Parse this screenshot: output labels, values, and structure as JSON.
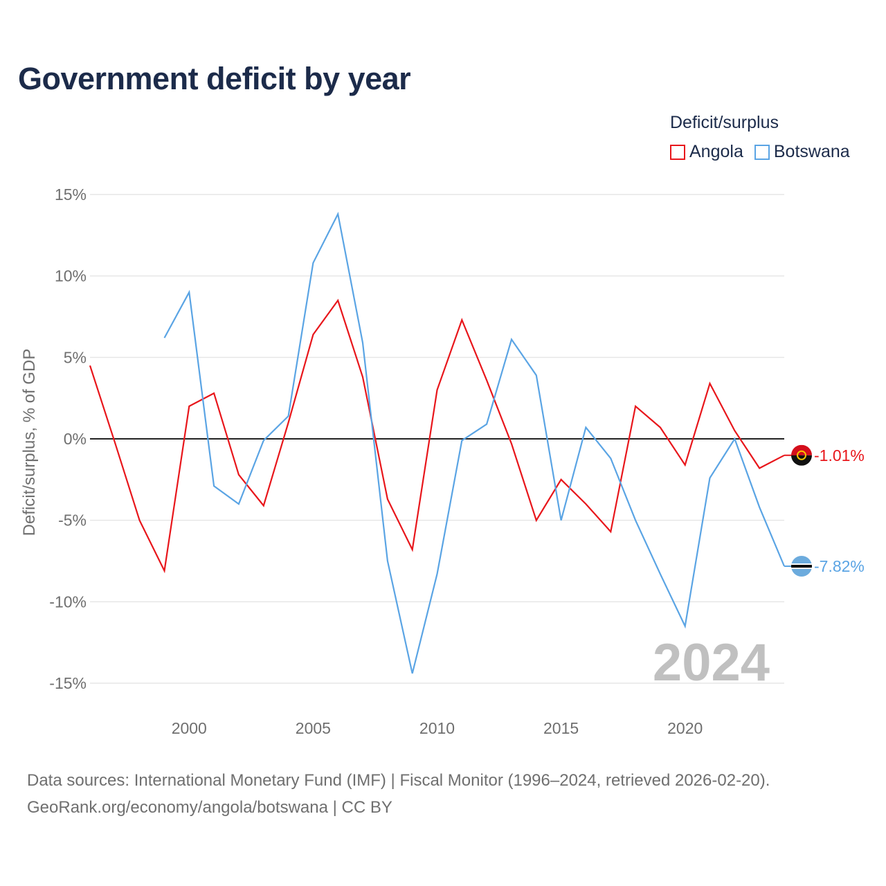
{
  "title": "Government deficit by year",
  "legend": {
    "title": "Deficit/surplus",
    "items": [
      {
        "name": "Angola",
        "color": "#e8161b"
      },
      {
        "name": "Botswana",
        "color": "#5aa4e4"
      }
    ]
  },
  "watermark_year": "2024",
  "footer": {
    "line1": "Data sources: International Monetary Fund (IMF) | Fiscal Monitor (1996–2024, retrieved 2026-02-20).",
    "line2": "GeoRank.org/economy/angola/botswana | CC BY"
  },
  "chart_data": {
    "type": "line",
    "title": "Government deficit by year",
    "xlabel": "",
    "ylabel": "Deficit/surplus, % of GDP",
    "xlim": [
      1996,
      2024
    ],
    "ylim": [
      -15,
      15
    ],
    "yticks": [
      15,
      10,
      5,
      0,
      -5,
      -10,
      -15
    ],
    "ytick_labels": [
      "15%",
      "10%",
      "5%",
      "0%",
      "-5%",
      "-10%",
      "-15%"
    ],
    "xticks": [
      2000,
      2005,
      2010,
      2015,
      2020
    ],
    "xtick_labels": [
      "2000",
      "2005",
      "2010",
      "2015",
      "2020"
    ],
    "grid": true,
    "series": [
      {
        "name": "Angola",
        "color": "#e8161b",
        "end_label": "-1.01%",
        "x": [
          1996,
          1997,
          1998,
          1999,
          2000,
          2001,
          2002,
          2003,
          2004,
          2005,
          2006,
          2007,
          2008,
          2009,
          2010,
          2011,
          2012,
          2013,
          2014,
          2015,
          2016,
          2017,
          2018,
          2019,
          2020,
          2021,
          2022,
          2023,
          2024
        ],
        "y": [
          4.5,
          -0.2,
          -5.0,
          -8.1,
          2.0,
          2.8,
          -2.2,
          -4.1,
          1.0,
          6.4,
          8.5,
          3.8,
          -3.7,
          -6.8,
          3.0,
          7.3,
          3.6,
          -0.3,
          -5.0,
          -2.5,
          -4.0,
          -5.7,
          2.0,
          0.7,
          -1.6,
          3.4,
          0.5,
          -1.8,
          -1.01
        ]
      },
      {
        "name": "Botswana",
        "color": "#5aa4e4",
        "end_label": "-7.82%",
        "x": [
          1999,
          2000,
          2001,
          2002,
          2003,
          2004,
          2005,
          2006,
          2007,
          2008,
          2009,
          2010,
          2011,
          2012,
          2013,
          2014,
          2015,
          2016,
          2017,
          2018,
          2019,
          2020,
          2021,
          2022,
          2023,
          2024
        ],
        "y": [
          6.2,
          9.0,
          -2.9,
          -4.0,
          -0.1,
          1.4,
          10.8,
          13.8,
          5.9,
          -7.5,
          -14.4,
          -8.3,
          -0.1,
          0.9,
          6.1,
          3.9,
          -5.0,
          0.7,
          -1.2,
          -5.0,
          -8.3,
          -11.5,
          -2.4,
          0.0,
          -4.2,
          -7.82
        ]
      }
    ]
  }
}
